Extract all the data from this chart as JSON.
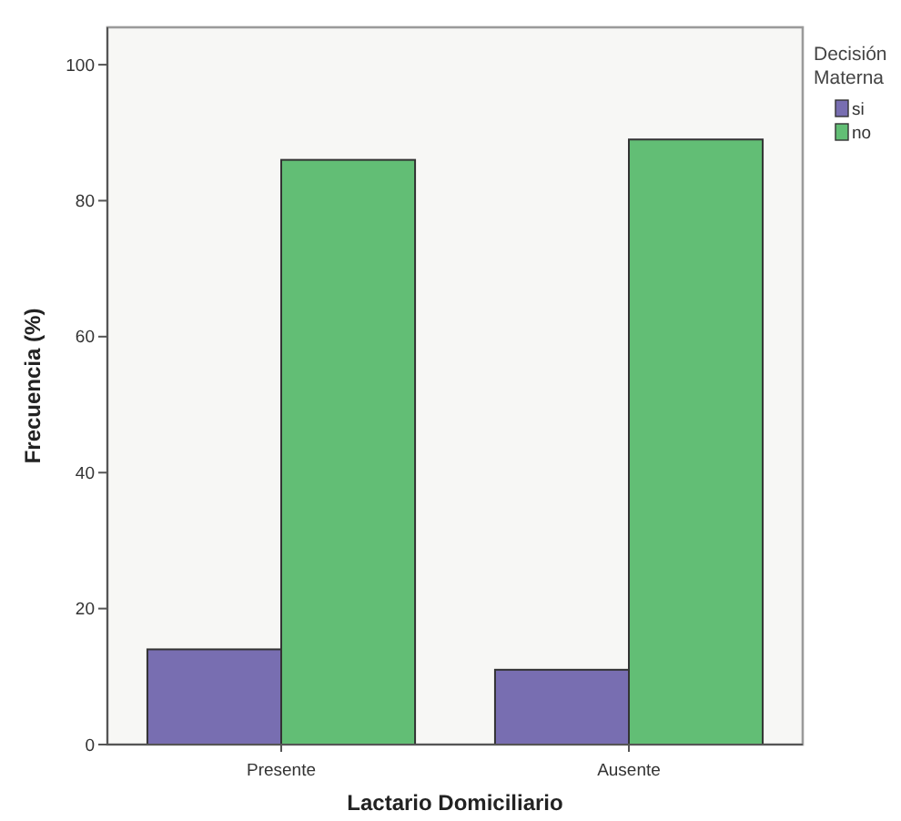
{
  "chart_data": {
    "type": "bar",
    "xlabel": "Lactario Domiciliario",
    "ylabel": "Frecuencia (%)",
    "legend_title": "Decisión Materna",
    "categories": [
      "Presente",
      "Ausente"
    ],
    "series": [
      {
        "name": "si",
        "color": "#786eb1",
        "values": [
          14,
          11
        ]
      },
      {
        "name": "no",
        "color": "#62be75",
        "values": [
          86,
          89
        ]
      }
    ],
    "ylim": [
      0,
      105.5
    ],
    "yticks": [
      0,
      20,
      40,
      60,
      80,
      100
    ],
    "grid": false,
    "legend": "top right"
  }
}
